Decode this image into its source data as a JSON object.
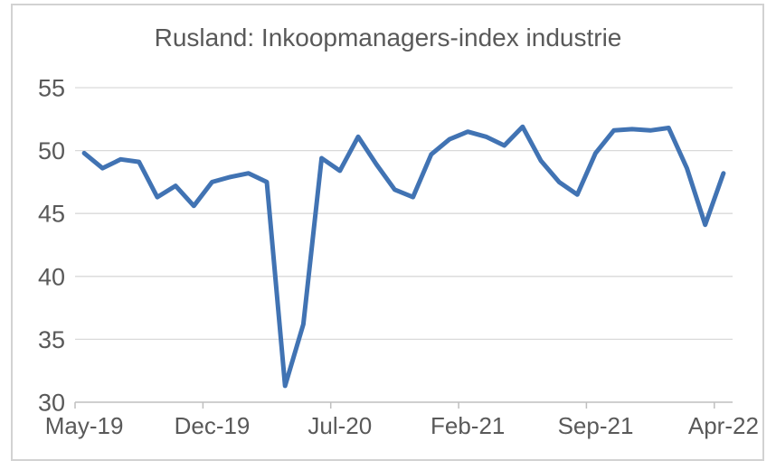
{
  "frame": {
    "border_color": "#d2d2d2",
    "background": "#ffffff"
  },
  "chart_data": {
    "type": "line",
    "title": "Rusland: Inkoopmanagers-index industrie",
    "xlabel": "",
    "ylabel": "",
    "categories": [
      "May-19",
      "Jun-19",
      "Jul-19",
      "Aug-19",
      "Sep-19",
      "Oct-19",
      "Nov-19",
      "Dec-19",
      "Jan-20",
      "Feb-20",
      "Mar-20",
      "Apr-20",
      "May-20",
      "Jun-20",
      "Jul-20",
      "Aug-20",
      "Sep-20",
      "Oct-20",
      "Nov-20",
      "Dec-20",
      "Jan-21",
      "Feb-21",
      "Mar-21",
      "Apr-21",
      "May-21",
      "Jun-21",
      "Jul-21",
      "Aug-21",
      "Sep-21",
      "Oct-21",
      "Nov-21",
      "Dec-21",
      "Jan-22",
      "Feb-22",
      "Mar-22",
      "Apr-22"
    ],
    "values": [
      49.8,
      48.6,
      49.3,
      49.1,
      46.3,
      47.2,
      45.6,
      47.5,
      47.9,
      48.2,
      47.5,
      31.3,
      36.2,
      49.4,
      48.4,
      51.1,
      48.9,
      46.9,
      46.3,
      49.7,
      50.9,
      51.5,
      51.1,
      50.4,
      51.9,
      49.2,
      47.5,
      46.5,
      49.8,
      51.6,
      51.7,
      51.6,
      51.8,
      48.6,
      44.1,
      48.2
    ],
    "x_tick_labels": [
      "May-19",
      "Dec-19",
      "Jul-20",
      "Feb-21",
      "Sep-21",
      "Apr-22"
    ],
    "x_tick_indices": [
      0,
      7,
      14,
      21,
      28,
      35
    ],
    "y_ticks": [
      55,
      50,
      45,
      40,
      35,
      30
    ],
    "ylim": [
      30,
      55
    ],
    "grid": true,
    "legend": "none",
    "line_color": "#4173b3",
    "gridline_color": "#d9d9d9",
    "axis_color": "#bfbfbf",
    "label_color": "#595959"
  }
}
